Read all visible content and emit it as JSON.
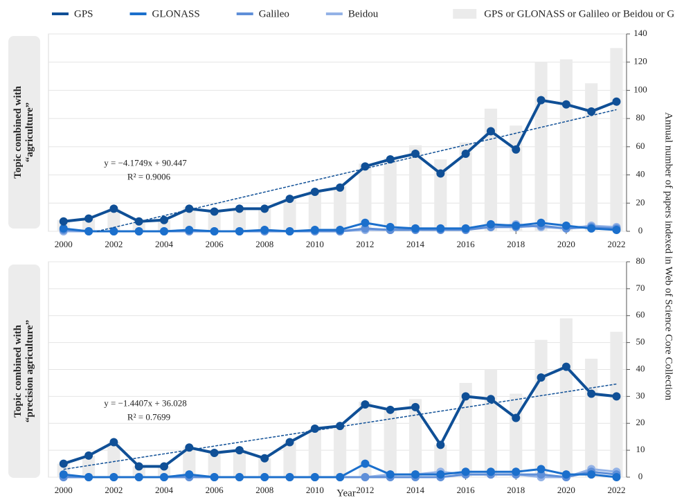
{
  "chart_data": [
    {
      "type": "combo",
      "label_lines": [
        "Topic combined with",
        "“agriculture”"
      ],
      "ylabel": "Annual number of papers indexed in Web of Science Core Collection",
      "x": [
        2000,
        2001,
        2002,
        2003,
        2004,
        2005,
        2006,
        2007,
        2008,
        2009,
        2010,
        2011,
        2012,
        2013,
        2014,
        2015,
        2016,
        2017,
        2018,
        2019,
        2020,
        2021,
        2022
      ],
      "xlim": [
        1999.4,
        2022.4
      ],
      "xticks": [
        2000,
        2002,
        2004,
        2006,
        2008,
        2010,
        2012,
        2014,
        2016,
        2018,
        2020,
        2022
      ],
      "ylim": [
        0,
        140
      ],
      "yticks": [
        0,
        20,
        40,
        60,
        80,
        100,
        120,
        140
      ],
      "grid": true,
      "series": [
        {
          "name": "GPS or GLONASS or Galileo or Beidou or GNSS",
          "type": "bar",
          "color": "#ebebeb",
          "values": [
            8,
            9,
            16,
            7,
            8,
            17,
            14,
            16,
            17,
            23,
            29,
            32,
            48,
            52,
            61,
            51,
            63,
            87,
            75,
            120,
            122,
            105,
            130
          ]
        },
        {
          "name": "Beidou",
          "type": "line",
          "color": "#93b2e6",
          "values": [
            0,
            0,
            0,
            0,
            0,
            0,
            0,
            0,
            0,
            0,
            0,
            0,
            1,
            1,
            2,
            2,
            2,
            3,
            5,
            3,
            2,
            4,
            3
          ]
        },
        {
          "name": "Galileo",
          "type": "line",
          "color": "#5f8fd8",
          "values": [
            1,
            0,
            0,
            0,
            0,
            0,
            0,
            0,
            0,
            0,
            0,
            0,
            2,
            1,
            1,
            1,
            1,
            3,
            3,
            4,
            2,
            3,
            2
          ]
        },
        {
          "name": "GLONASS",
          "type": "line",
          "color": "#1b6fcc",
          "values": [
            2,
            0,
            0,
            0,
            0,
            1,
            0,
            0,
            1,
            0,
            1,
            1,
            6,
            3,
            2,
            2,
            2,
            5,
            4,
            6,
            4,
            2,
            1
          ]
        },
        {
          "name": "GPS",
          "type": "line",
          "color": "#0f4f96",
          "values": [
            7,
            9,
            16,
            7,
            8,
            16,
            14,
            16,
            16,
            23,
            28,
            31,
            46,
            51,
            55,
            41,
            55,
            71,
            58,
            93,
            90,
            85,
            92
          ]
        }
      ],
      "annotations": [
        "y = −4.1749x + 90.447",
        "R² = 0.9006"
      ]
    },
    {
      "type": "combo",
      "label_lines": [
        "Topic combined with",
        "“precision agriculture”"
      ],
      "xlabel": "Year",
      "x": [
        2000,
        2001,
        2002,
        2003,
        2004,
        2005,
        2006,
        2007,
        2008,
        2009,
        2010,
        2011,
        2012,
        2013,
        2014,
        2015,
        2016,
        2017,
        2018,
        2019,
        2020,
        2021,
        2022
      ],
      "xlim": [
        1999.4,
        2022.4
      ],
      "xticks": [
        2000,
        2002,
        2004,
        2006,
        2008,
        2010,
        2012,
        2014,
        2016,
        2018,
        2020,
        2022
      ],
      "ylim": [
        0,
        80
      ],
      "yticks": [
        0,
        10,
        20,
        30,
        40,
        50,
        60,
        70,
        80
      ],
      "grid": true,
      "series": [
        {
          "type": "bar",
          "color": "#ebebeb",
          "values": [
            5,
            8,
            13,
            4,
            4,
            11,
            9,
            10,
            7,
            13,
            18,
            19,
            28,
            25,
            29,
            12,
            35,
            40,
            31,
            51,
            59,
            44,
            54
          ]
        },
        {
          "type": "line",
          "color": "#93b2e6",
          "values": [
            0,
            0,
            0,
            0,
            0,
            0,
            0,
            0,
            0,
            0,
            0,
            0,
            0,
            1,
            1,
            2,
            1,
            1,
            1,
            0,
            0,
            3,
            2
          ]
        },
        {
          "type": "line",
          "color": "#5f8fd8",
          "values": [
            0,
            0,
            0,
            0,
            0,
            0,
            0,
            0,
            0,
            0,
            0,
            0,
            0,
            0,
            0,
            0,
            1,
            1,
            1,
            1,
            0,
            2,
            1
          ]
        },
        {
          "type": "line",
          "color": "#1b6fcc",
          "values": [
            1,
            0,
            0,
            0,
            0,
            1,
            0,
            0,
            0,
            0,
            0,
            0,
            5,
            1,
            1,
            1,
            2,
            2,
            2,
            3,
            1,
            1,
            0
          ]
        },
        {
          "type": "line",
          "color": "#0f4f96",
          "values": [
            5,
            8,
            13,
            4,
            4,
            11,
            9,
            10,
            7,
            13,
            18,
            19,
            27,
            25,
            26,
            12,
            30,
            29,
            22,
            37,
            41,
            31,
            30
          ]
        }
      ],
      "annotations": [
        "y = −1.4407x + 36.028",
        "R² = 0.7699"
      ]
    }
  ]
}
